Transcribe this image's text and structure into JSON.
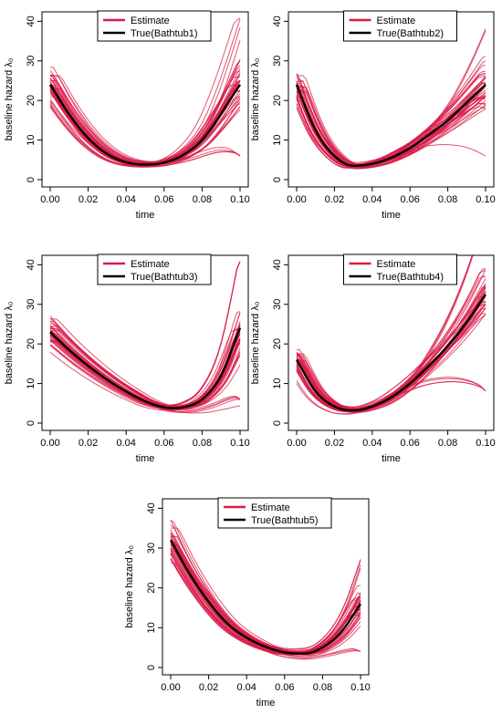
{
  "colors": {
    "estimate": "#d81b47",
    "true": "#000000"
  },
  "chart_data": [
    {
      "type": "line",
      "xlabel": "time",
      "ylabel": "baseline hazard λ₀",
      "xticks": [
        "0.00",
        "0.02",
        "0.04",
        "0.06",
        "0.08",
        "0.10"
      ],
      "yticks": [
        "0",
        "10",
        "20",
        "30",
        "40"
      ],
      "xlim": [
        0,
        0.1
      ],
      "ylim": [
        0,
        41
      ],
      "legend": {
        "position": "top-center",
        "entries": [
          "Estimate",
          "True(Bathtub1)"
        ]
      },
      "true_curve": {
        "name": "True(Bathtub1)",
        "x": [
          0.0,
          0.01,
          0.02,
          0.03,
          0.04,
          0.05,
          0.06,
          0.07,
          0.08,
          0.1
        ],
        "y": [
          24,
          16.5,
          10.5,
          6.5,
          4.4,
          3.8,
          4.3,
          6.2,
          10,
          24
        ]
      },
      "estimate_curves": 40
    },
    {
      "type": "line",
      "xlabel": "time",
      "ylabel": "baseline hazard λ₀",
      "xticks": [
        "0.00",
        "0.02",
        "0.04",
        "0.06",
        "0.08",
        "0.10"
      ],
      "yticks": [
        "0",
        "10",
        "20",
        "30",
        "40"
      ],
      "xlim": [
        0,
        0.1
      ],
      "ylim": [
        0,
        41
      ],
      "legend": {
        "position": "top-center",
        "entries": [
          "Estimate",
          "True(Bathtub2)"
        ]
      },
      "true_curve": {
        "name": "True(Bathtub2)",
        "x": [
          0.0,
          0.01,
          0.02,
          0.03,
          0.04,
          0.05,
          0.06,
          0.07,
          0.08,
          0.1
        ],
        "y": [
          24,
          12.5,
          6,
          3.5,
          4,
          5.5,
          8,
          11.3,
          15,
          24
        ]
      },
      "estimate_curves": 40
    },
    {
      "type": "line",
      "xlabel": "time",
      "ylabel": "baseline hazard λ₀",
      "xticks": [
        "0.00",
        "0.02",
        "0.04",
        "0.06",
        "0.08",
        "0.10"
      ],
      "yticks": [
        "0",
        "10",
        "20",
        "30",
        "40"
      ],
      "xlim": [
        0,
        0.1
      ],
      "ylim": [
        0,
        41
      ],
      "legend": {
        "position": "top-center",
        "entries": [
          "Estimate",
          "True(Bathtub3)"
        ]
      },
      "true_curve": {
        "name": "True(Bathtub3)",
        "x": [
          0.0,
          0.01,
          0.02,
          0.03,
          0.04,
          0.05,
          0.06,
          0.065,
          0.07,
          0.08,
          0.09,
          0.1
        ],
        "y": [
          23,
          18.5,
          14.5,
          11,
          8,
          5.5,
          4,
          3.8,
          4,
          6,
          12,
          24
        ]
      },
      "estimate_curves": 40
    },
    {
      "type": "line",
      "xlabel": "time",
      "ylabel": "baseline hazard λ₀",
      "xticks": [
        "0.00",
        "0.02",
        "0.04",
        "0.06",
        "0.08",
        "0.10"
      ],
      "yticks": [
        "0",
        "10",
        "20",
        "30",
        "40"
      ],
      "xlim": [
        0,
        0.1
      ],
      "ylim": [
        0,
        41
      ],
      "legend": {
        "position": "top-center",
        "entries": [
          "Estimate",
          "True(Bathtub4)"
        ]
      },
      "true_curve": {
        "name": "True(Bathtub4)",
        "x": [
          0.0,
          0.01,
          0.02,
          0.03,
          0.04,
          0.05,
          0.06,
          0.07,
          0.08,
          0.09,
          0.1
        ],
        "y": [
          16,
          8,
          4.2,
          3.2,
          4.2,
          6.5,
          10,
          14.5,
          19.5,
          25.5,
          32.5
        ]
      },
      "estimate_curves": 40
    },
    {
      "type": "line",
      "xlabel": "time",
      "ylabel": "baseline hazard λ₀",
      "xticks": [
        "0.00",
        "0.02",
        "0.04",
        "0.06",
        "0.08",
        "0.10"
      ],
      "yticks": [
        "0",
        "10",
        "20",
        "30",
        "40"
      ],
      "xlim": [
        0,
        0.1
      ],
      "ylim": [
        0,
        41
      ],
      "legend": {
        "position": "top-center",
        "entries": [
          "Estimate",
          "True(Bathtub5)"
        ]
      },
      "true_curve": {
        "name": "True(Bathtub5)",
        "x": [
          0.0,
          0.01,
          0.02,
          0.03,
          0.04,
          0.05,
          0.06,
          0.07,
          0.08,
          0.09,
          0.1
        ],
        "y": [
          32,
          23.5,
          16.5,
          11,
          7.5,
          5.2,
          3.8,
          3.5,
          5,
          9,
          16
        ]
      },
      "estimate_curves": 40
    }
  ]
}
